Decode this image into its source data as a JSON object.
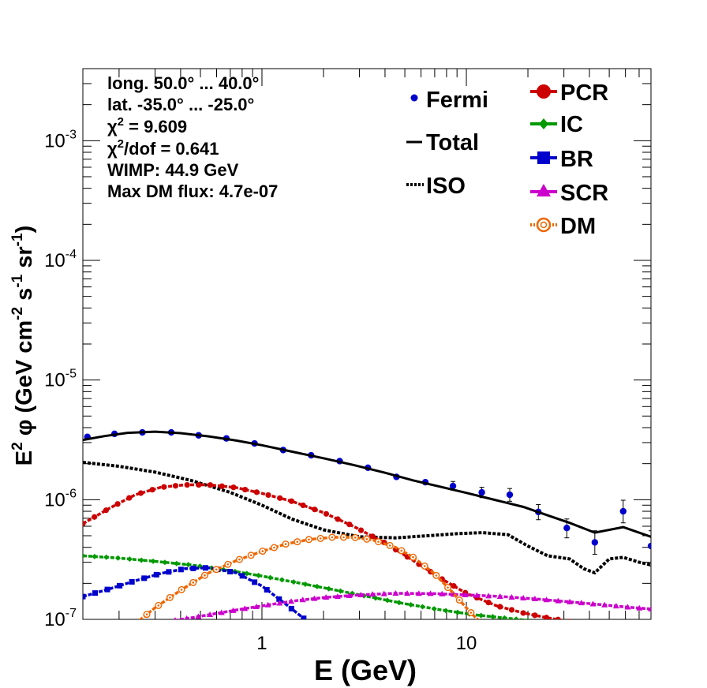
{
  "chart_data": {
    "type": "line",
    "xlabel": "E (GeV)",
    "ylabel": {
      "base": "E",
      "sup1": "2",
      "phi": " φ (GeV cm",
      "sup2": "-2",
      "mid1": " s",
      "sup3": "-1",
      "mid2": " sr",
      "sup4": "-1",
      "end": ")"
    },
    "x_scale": "log",
    "y_scale": "log",
    "xlim": [
      0.133,
      80
    ],
    "ylim": [
      1e-07,
      0.004
    ],
    "x_tick_labels": [
      "1",
      "10"
    ],
    "y_tick_labels": [
      {
        "label": "10",
        "exp": "-7",
        "value": 1e-07
      },
      {
        "label": "10",
        "exp": "-6",
        "value": 1e-06
      },
      {
        "label": "10",
        "exp": "-5",
        "value": 1e-05
      },
      {
        "label": "10",
        "exp": "-4",
        "value": 0.0001
      },
      {
        "label": "10",
        "exp": "-3",
        "value": 0.001
      }
    ],
    "info_lines": {
      "line1": "long. 50.0° ... 40.0°",
      "line2": "lat. -35.0° ... -25.0°",
      "chi_label": "χ",
      "chi_sup": "2",
      "chi_value": " = 9.609",
      "chidof_label": "χ",
      "chidof_sup": "2",
      "chidof_value": "/dof = 0.641",
      "line5": "WIMP: 44.9 GeV",
      "line6": "Max DM flux: 4.7e-07"
    },
    "legend": {
      "left": [
        {
          "name": "Fermi",
          "marker": "dot",
          "color": "#0000cc"
        },
        {
          "name": "Total",
          "marker": "line",
          "color": "#000000"
        },
        {
          "name": "ISO",
          "marker": "dotted",
          "color": "#000000"
        }
      ],
      "right": [
        {
          "name": "PCR",
          "marker": "circle",
          "color": "#cc0000"
        },
        {
          "name": "IC",
          "marker": "diamond",
          "color": "#009900"
        },
        {
          "name": "BR",
          "marker": "square",
          "color": "#0000cc"
        },
        {
          "name": "SCR",
          "marker": "triangle",
          "color": "#cc00cc"
        },
        {
          "name": "DM",
          "marker": "open-circle",
          "color": "#ee6600"
        }
      ]
    },
    "series": [
      {
        "name": "Fermi",
        "type": "points",
        "color": "#0000cc",
        "points": [
          {
            "x": 0.14,
            "y": 3.35e-06
          },
          {
            "x": 0.19,
            "y": 3.55e-06
          },
          {
            "x": 0.26,
            "y": 3.65e-06
          },
          {
            "x": 0.36,
            "y": 3.65e-06
          },
          {
            "x": 0.49,
            "y": 3.45e-06
          },
          {
            "x": 0.67,
            "y": 3.25e-06
          },
          {
            "x": 0.92,
            "y": 2.95e-06
          },
          {
            "x": 1.27,
            "y": 2.6e-06
          },
          {
            "x": 1.74,
            "y": 2.35e-06
          },
          {
            "x": 2.4,
            "y": 2.1e-06
          },
          {
            "x": 3.3,
            "y": 1.85e-06
          },
          {
            "x": 4.55,
            "y": 1.55e-06
          },
          {
            "x": 6.3,
            "y": 1.4e-06
          },
          {
            "x": 8.6,
            "y": 1.3e-06,
            "err": [
              1.2e-06,
              1.42e-06
            ]
          },
          {
            "x": 11.9,
            "y": 1.15e-06,
            "err": [
              1.04e-06,
              1.27e-06
            ]
          },
          {
            "x": 16.3,
            "y": 1.1e-06,
            "err": [
              9.7e-07,
              1.24e-06
            ]
          },
          {
            "x": 22.5,
            "y": 7.9e-07,
            "err": [
              6.8e-07,
              9.1e-07
            ]
          },
          {
            "x": 31,
            "y": 5.8e-07,
            "err": [
              4.8e-07,
              6.9e-07
            ]
          },
          {
            "x": 42.5,
            "y": 4.4e-07,
            "err": [
              3.5e-07,
              5.5e-07
            ]
          },
          {
            "x": 58.5,
            "y": 8e-07,
            "err": [
              6.4e-07,
              9.9e-07
            ]
          },
          {
            "x": 80,
            "y": 4.1e-07,
            "err": [
              2.8e-07,
              5.5e-07
            ]
          }
        ]
      },
      {
        "name": "Total",
        "type": "solid",
        "color": "#000000",
        "x": [
          0.133,
          0.17,
          0.22,
          0.3,
          0.4,
          0.55,
          0.75,
          1.0,
          1.4,
          2.0,
          2.8,
          4.0,
          5.5,
          7.5,
          10,
          14,
          19,
          25,
          32,
          42.5,
          58.5,
          80
        ],
        "y": [
          3.15e-06,
          3.4e-06,
          3.62e-06,
          3.7e-06,
          3.6e-06,
          3.38e-06,
          3.12e-06,
          2.85e-06,
          2.52e-06,
          2.22e-06,
          1.95e-06,
          1.68e-06,
          1.45e-06,
          1.28e-06,
          1.14e-06,
          9.9e-07,
          8.7e-07,
          7.4e-07,
          6.4e-07,
          5.3e-07,
          5.9e-07,
          4.9e-07
        ]
      },
      {
        "name": "ISO",
        "type": "dotted",
        "color": "#000000",
        "x": [
          0.133,
          0.2,
          0.3,
          0.45,
          0.7,
          1.0,
          1.4,
          2.0,
          3.0,
          4.5,
          6.5,
          9.0,
          12,
          16,
          20,
          25,
          32,
          37.5,
          42.5,
          50,
          58.5,
          70,
          80
        ],
        "y": [
          2.05e-06,
          1.9e-06,
          1.7e-06,
          1.45e-06,
          1.15e-06,
          9e-07,
          6.9e-07,
          5.6e-07,
          4.9e-07,
          4.8e-07,
          5e-07,
          5.2e-07,
          5.3e-07,
          5.1e-07,
          4.1e-07,
          3.4e-07,
          3.2e-07,
          2.65e-07,
          2.45e-07,
          3.2e-07,
          3.3e-07,
          3e-07,
          2.85e-07
        ]
      },
      {
        "name": "PCR",
        "type": "marked",
        "marker": "circle",
        "color": "#cc0000",
        "x": [
          0.133,
          0.18,
          0.24,
          0.32,
          0.42,
          0.55,
          0.75,
          1.0,
          1.4,
          2.0,
          2.8,
          4.0,
          5.5,
          7.5,
          10,
          14,
          19,
          25,
          32
        ],
        "y": [
          6.3e-07,
          8.5e-07,
          1.1e-06,
          1.27e-06,
          1.33e-06,
          1.33e-06,
          1.26e-06,
          1.13e-06,
          9.7e-07,
          7.8e-07,
          6e-07,
          4.35e-07,
          3.1e-07,
          2.2e-07,
          1.65e-07,
          1.3e-07,
          1.13e-07,
          1.03e-07,
          9.6e-08
        ]
      },
      {
        "name": "IC",
        "type": "marked",
        "marker": "diamond",
        "color": "#009900",
        "x": [
          0.133,
          0.2,
          0.3,
          0.45,
          0.7,
          1.0,
          1.5,
          2.2,
          3.3,
          5.0,
          7.5,
          11,
          16,
          20
        ],
        "y": [
          3.4e-07,
          3.25e-07,
          3.05e-07,
          2.85e-07,
          2.55e-07,
          2.3e-07,
          2.02e-07,
          1.78e-07,
          1.55e-07,
          1.35e-07,
          1.2e-07,
          1.09e-07,
          1.02e-07,
          9.8e-08
        ]
      },
      {
        "name": "BR",
        "type": "marked",
        "marker": "square",
        "color": "#0000cc",
        "x": [
          0.133,
          0.18,
          0.24,
          0.32,
          0.42,
          0.55,
          0.75,
          1.0,
          1.3,
          1.6
        ],
        "y": [
          1.55e-07,
          1.8e-07,
          2.1e-07,
          2.42e-07,
          2.65e-07,
          2.7e-07,
          2.45e-07,
          1.9e-07,
          1.35e-07,
          1.02e-07
        ]
      },
      {
        "name": "SCR",
        "type": "marked",
        "marker": "triangle",
        "color": "#cc00cc",
        "x": [
          0.33,
          0.45,
          0.6,
          0.8,
          1.1,
          1.5,
          2.0,
          3.0,
          4.5,
          7,
          10,
          15,
          22,
          32,
          45,
          60,
          80
        ],
        "y": [
          9.5e-08,
          1.03e-07,
          1.12e-07,
          1.22e-07,
          1.33e-07,
          1.44e-07,
          1.52e-07,
          1.6e-07,
          1.65e-07,
          1.64e-07,
          1.6e-07,
          1.55e-07,
          1.48e-07,
          1.4e-07,
          1.33e-07,
          1.27e-07,
          1.22e-07
        ]
      },
      {
        "name": "DM",
        "type": "marked",
        "marker": "open-circle",
        "color": "#ee6600",
        "x": [
          0.24,
          0.3,
          0.4,
          0.55,
          0.75,
          1.0,
          1.3,
          1.7,
          2.2,
          2.8,
          3.5,
          4.5,
          5.5,
          7.0,
          8.5,
          10,
          11,
          12
        ],
        "y": [
          9.2e-08,
          1.25e-07,
          1.75e-07,
          2.45e-07,
          3.1e-07,
          3.7e-07,
          4.25e-07,
          4.65e-07,
          4.85e-07,
          4.85e-07,
          4.6e-07,
          4e-07,
          3.3e-07,
          2.4e-07,
          1.7e-07,
          1.25e-07,
          1.05e-07,
          9.2e-08
        ]
      }
    ]
  }
}
